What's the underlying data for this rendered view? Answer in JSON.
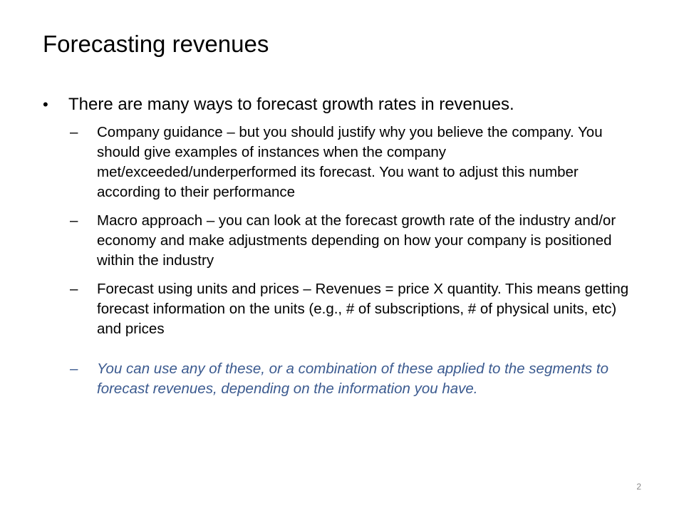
{
  "slide": {
    "title": "Forecasting revenues",
    "bullet": "There are many ways to forecast growth rates in revenues.",
    "bullet_symbol": "•",
    "dash_symbol": "–",
    "sub_points": [
      "Company guidance – but you should justify why you believe the company. You should give examples of instances when the company met/exceeded/underperformed its forecast. You want to adjust this number according to their performance",
      "Macro approach – you can look at the forecast growth rate of the industry and/or economy and make adjustments depending on how your company is positioned within the industry",
      "Forecast using units and prices – Revenues = price X quantity. This means getting forecast information on the units (e.g., # of subscriptions, # of physical units, etc) and prices"
    ],
    "highlight_point": "You can use any of these, or a combination of these applied to the segments to forecast revenues, depending on the information you have.",
    "page_number": "2",
    "highlight_color": "#3b5a8f"
  }
}
